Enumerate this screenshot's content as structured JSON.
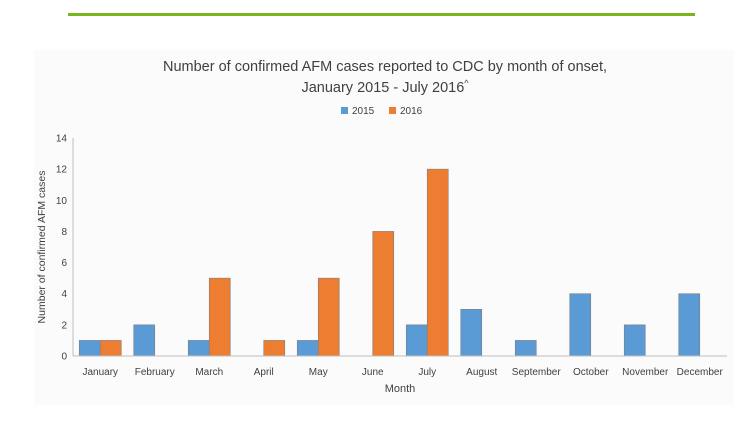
{
  "chart_data": {
    "type": "bar",
    "title_line1": "Number of confirmed AFM cases reported to CDC by month of onset,",
    "title_line2": "January 2015 - July 2016",
    "title_mark": "^",
    "xlabel": "Month",
    "ylabel": "Number of confirmed AFM cases",
    "ylim": [
      0,
      14
    ],
    "yticks": [
      "0",
      "2",
      "4",
      "6",
      "8",
      "10",
      "12",
      "14"
    ],
    "grid": false,
    "legend_position": "top-center",
    "categories": [
      "January",
      "February",
      "March",
      "April",
      "May",
      "June",
      "July",
      "August",
      "September",
      "October",
      "November",
      "December"
    ],
    "series": [
      {
        "name": "2015",
        "color": "#5b9bd5",
        "values": [
          1,
          2,
          1,
          null,
          1,
          null,
          2,
          3,
          1,
          4,
          2,
          4
        ]
      },
      {
        "name": "2016",
        "color": "#ed7d31",
        "values": [
          1,
          null,
          5,
          1,
          5,
          8,
          12,
          null,
          null,
          null,
          null,
          null
        ]
      }
    ]
  }
}
